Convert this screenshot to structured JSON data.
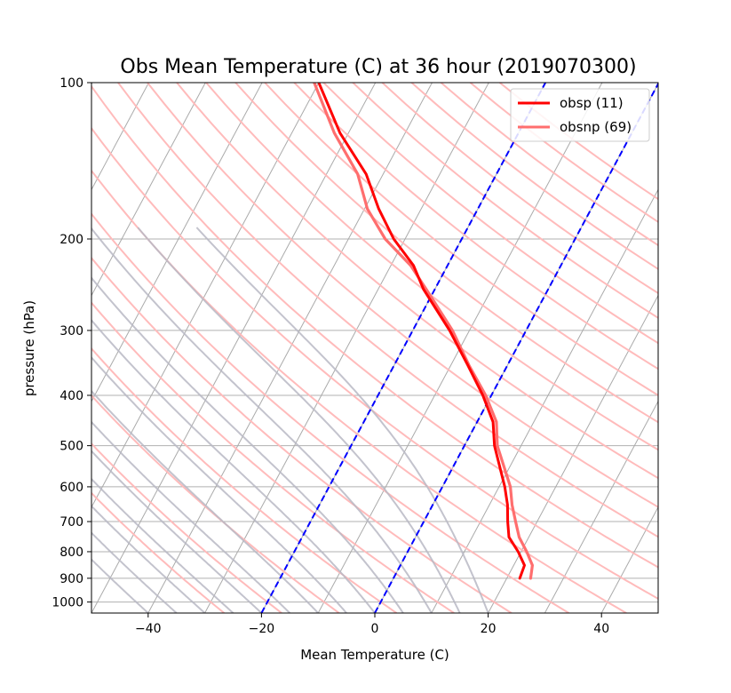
{
  "chart_data": {
    "type": "line",
    "title": "Obs Mean Temperature (C) at 36 hour (2019070300)",
    "xlabel": "Mean Temperature (C)",
    "ylabel": "pressure (hPa)",
    "xlim": [
      -50,
      50
    ],
    "ylim": [
      1050,
      100
    ],
    "y_scale": "log",
    "skew_t": true,
    "x_ticks": [
      -40,
      -20,
      0,
      20,
      40
    ],
    "x_tick_labels": [
      "−40",
      "−20",
      "0",
      "20",
      "40"
    ],
    "y_ticks": [
      100,
      200,
      300,
      400,
      500,
      600,
      700,
      800,
      900,
      1000
    ],
    "y_tick_labels": [
      "100",
      "200",
      "300",
      "400",
      "500",
      "600",
      "700",
      "800",
      "900",
      "1000"
    ],
    "grid": true,
    "legend_position": "top-right",
    "series": [
      {
        "name": "obsp (11)",
        "color": "#ff0000",
        "points": [
          [
            900,
            22.3
          ],
          [
            850,
            21.9
          ],
          [
            800,
            19.5
          ],
          [
            750,
            16.5
          ],
          [
            700,
            14.8
          ],
          [
            650,
            13.2
          ],
          [
            600,
            11.0
          ],
          [
            500,
            5.3
          ],
          [
            450,
            2.8
          ],
          [
            400,
            -1.5
          ],
          [
            350,
            -7.0
          ],
          [
            300,
            -13.5
          ],
          [
            250,
            -22.0
          ],
          [
            225,
            -26.0
          ],
          [
            200,
            -32.0
          ],
          [
            175,
            -37.5
          ],
          [
            150,
            -43.0
          ],
          [
            125,
            -51.5
          ],
          [
            100,
            -60.0
          ]
        ]
      },
      {
        "name": "obsnp (69)",
        "color": "#ff6e6e",
        "points": [
          [
            900,
            24.2
          ],
          [
            850,
            23.3
          ],
          [
            800,
            21.0
          ],
          [
            750,
            18.3
          ],
          [
            700,
            16.2
          ],
          [
            650,
            14.0
          ],
          [
            600,
            12.0
          ],
          [
            500,
            5.8
          ],
          [
            450,
            3.4
          ],
          [
            400,
            -1.0
          ],
          [
            350,
            -6.8
          ],
          [
            300,
            -13.0
          ],
          [
            250,
            -21.5
          ],
          [
            225,
            -26.5
          ],
          [
            200,
            -33.5
          ],
          [
            175,
            -39.5
          ],
          [
            150,
            -44.5
          ],
          [
            125,
            -52.5
          ],
          [
            100,
            -60.8
          ]
        ]
      }
    ],
    "reference_lines": {
      "dashed_isotherms_C": [
        -20,
        0
      ],
      "dashed_color": "#0000ff",
      "isotherm_color": "#aaaaaa",
      "dry_adiabat_color": "#ffbbbb",
      "moist_adiabat_color": "#b8b8c4"
    }
  }
}
